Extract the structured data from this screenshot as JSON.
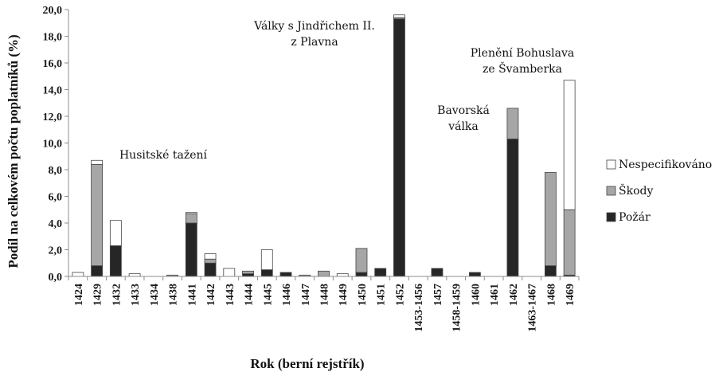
{
  "chart_data": {
    "type": "bar",
    "stacked": true,
    "categories": [
      "1424",
      "1429",
      "1432",
      "1433",
      "1434",
      "1438",
      "1441",
      "1442",
      "1443",
      "1444",
      "1445",
      "1446",
      "1447",
      "1448",
      "1449",
      "1450",
      "1451",
      "1452",
      "1453-1456",
      "1457",
      "1458-1459",
      "1460",
      "1461",
      "1462",
      "1463-1467",
      "1468",
      "1469"
    ],
    "series": [
      {
        "name": "Požár",
        "color": "#262626",
        "values": [
          0,
          0.8,
          2.3,
          0,
          0,
          0,
          4.0,
          1.0,
          0,
          0.2,
          0.5,
          0.3,
          0,
          0,
          0,
          0.3,
          0.6,
          19.3,
          0,
          0.6,
          0,
          0.3,
          0,
          10.3,
          0,
          0.8,
          0.1
        ]
      },
      {
        "name": "Škody",
        "color": "#a6a6a6",
        "values": [
          0,
          7.6,
          0,
          0,
          0,
          0.1,
          0.7,
          0.3,
          0,
          0.2,
          0,
          0,
          0.1,
          0.4,
          0,
          1.8,
          0,
          0.1,
          0,
          0,
          0,
          0,
          0,
          2.3,
          0,
          7.0,
          4.9
        ]
      },
      {
        "name": "Nespecifikováno",
        "color": "#ffffff",
        "values": [
          0.3,
          0.3,
          1.9,
          0.2,
          0,
          0,
          0.1,
          0.4,
          0.6,
          0,
          1.5,
          0,
          0,
          0,
          0.2,
          0,
          0,
          0.2,
          0,
          0,
          0,
          0,
          0,
          0,
          0,
          0,
          9.7
        ]
      }
    ],
    "ylim": [
      0,
      20
    ],
    "yticks": [
      "0,0",
      "2,0",
      "4,0",
      "6,0",
      "8,0",
      "10,0",
      "12,0",
      "14,0",
      "16,0",
      "18,0",
      "20,0"
    ],
    "ylabel": "Podíl na celkovém počtu poplatníků (%)",
    "xlabel": "Rok (berní rejstřík)",
    "legend_position": "right",
    "annotations": [
      {
        "lines": [
          "Husitské tažení"
        ]
      },
      {
        "lines": [
          "Války s Jindřichem II.",
          "z Plavna"
        ]
      },
      {
        "lines": [
          "Bavorská",
          "válka"
        ]
      },
      {
        "lines": [
          "Plenění Bohuslava",
          "ze Švamberka"
        ]
      }
    ]
  }
}
